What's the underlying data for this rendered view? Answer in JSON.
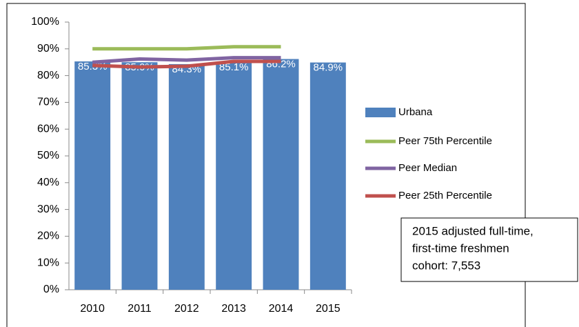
{
  "chart_data": {
    "type": "bar",
    "categories": [
      "2010",
      "2011",
      "2012",
      "2013",
      "2014",
      "2015"
    ],
    "series": [
      {
        "name": "Urbana",
        "type": "bar",
        "color": "#4f81bd",
        "values": [
          85.3,
          85.0,
          84.3,
          85.1,
          86.2,
          84.9
        ],
        "value_labels": [
          "85.3%",
          "85.0%",
          "84.3%",
          "85.1%",
          "86.2%",
          "84.9%"
        ]
      },
      {
        "name": "Peer 75th Percentile",
        "type": "line",
        "color": "#9bbb59",
        "values": [
          90.0,
          90.0,
          90.0,
          90.8,
          90.8,
          null
        ]
      },
      {
        "name": "Peer Median",
        "type": "line",
        "color": "#8064a2",
        "values": [
          85.0,
          86.2,
          85.8,
          86.7,
          86.7,
          null
        ]
      },
      {
        "name": "Peer 25th Percentile",
        "type": "line",
        "color": "#c0504d",
        "values": [
          83.8,
          83.2,
          83.5,
          85.3,
          85.3,
          null
        ]
      }
    ],
    "ylim": [
      0,
      100
    ],
    "yticks": [
      {
        "value": 0,
        "label": "0%"
      },
      {
        "value": 10,
        "label": "10%"
      },
      {
        "value": 20,
        "label": "20%"
      },
      {
        "value": 30,
        "label": "30%"
      },
      {
        "value": 40,
        "label": "40%"
      },
      {
        "value": 50,
        "label": "50%"
      },
      {
        "value": 60,
        "label": "60%"
      },
      {
        "value": 70,
        "label": "70%"
      },
      {
        "value": 80,
        "label": "80%"
      },
      {
        "value": 90,
        "label": "90%"
      },
      {
        "value": 100,
        "label": "100%"
      }
    ],
    "legend": "right",
    "annotation": [
      "2015 adjusted full-time,",
      "first-time freshmen",
      "cohort: 7,553"
    ]
  }
}
